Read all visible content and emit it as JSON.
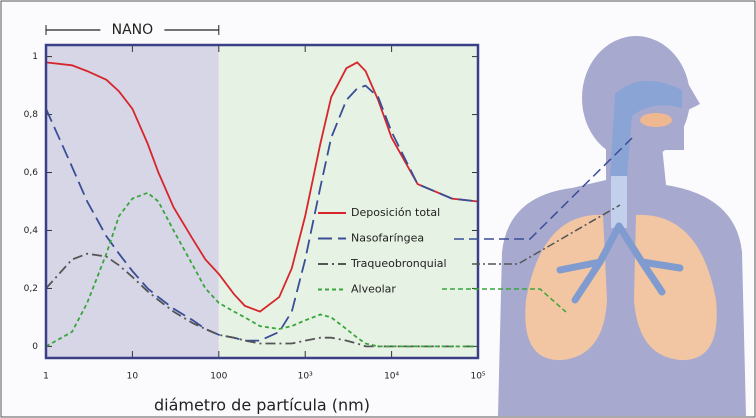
{
  "chart_data": {
    "type": "line",
    "xscale": "log",
    "xlabel": "diámetro de partícula (nm)",
    "xlim": [
      1,
      100000
    ],
    "xticks": [
      1,
      10,
      100,
      {
        "value": 1000,
        "label": "10³"
      },
      {
        "value": 10000,
        "label": "10⁴"
      },
      {
        "value": 100000,
        "label": "10⁵"
      }
    ],
    "ylim": [
      -0.04,
      1.04
    ],
    "yticks": [
      0,
      {
        "value": 0.2,
        "label": "0,2"
      },
      {
        "value": 0.4,
        "label": "0,4"
      },
      {
        "value": 0.6,
        "label": "0,6"
      },
      {
        "value": 0.8,
        "label": "0,8"
      },
      1
    ],
    "grid": false,
    "legend": "inside right",
    "regions": [
      {
        "label": "NANO",
        "xlim": [
          1,
          100
        ],
        "color": "#d6d6e7"
      },
      {
        "xlim": [
          100,
          100000
        ],
        "color": "#e6f2e3"
      }
    ],
    "x": [
      1,
      2,
      3,
      5,
      7,
      10,
      15,
      20,
      30,
      50,
      70,
      100,
      150,
      200,
      300,
      500,
      700,
      1000,
      1500,
      2000,
      3000,
      4000,
      5000,
      7000,
      10000,
      20000,
      50000,
      100000
    ],
    "series": [
      {
        "name": "Deposición total",
        "color": "#d7262b",
        "dash": "solid",
        "values": [
          0.98,
          0.97,
          0.95,
          0.92,
          0.88,
          0.82,
          0.7,
          0.6,
          0.48,
          0.37,
          0.3,
          0.25,
          0.18,
          0.14,
          0.12,
          0.17,
          0.27,
          0.45,
          0.7,
          0.86,
          0.96,
          0.98,
          0.95,
          0.85,
          0.72,
          0.56,
          0.51,
          0.5
        ]
      },
      {
        "name": "Nasofaríngea",
        "color": "#3a4e97",
        "dash": "dashed",
        "values": [
          0.82,
          0.62,
          0.5,
          0.38,
          0.32,
          0.26,
          0.2,
          0.17,
          0.13,
          0.09,
          0.06,
          0.04,
          0.03,
          0.02,
          0.02,
          0.05,
          0.12,
          0.3,
          0.55,
          0.72,
          0.85,
          0.89,
          0.9,
          0.86,
          0.74,
          0.56,
          0.51,
          0.5
        ]
      },
      {
        "name": "Traqueobronquial",
        "color": "#555555",
        "dash": "dashdot",
        "values": [
          0.2,
          0.3,
          0.32,
          0.31,
          0.28,
          0.24,
          0.19,
          0.16,
          0.12,
          0.08,
          0.06,
          0.04,
          0.03,
          0.02,
          0.01,
          0.01,
          0.01,
          0.02,
          0.03,
          0.03,
          0.02,
          0.01,
          0,
          0,
          0,
          0,
          0,
          0
        ]
      },
      {
        "name": "Alveolar",
        "color": "#3aa53c",
        "dash": "dotted",
        "values": [
          0,
          0.05,
          0.15,
          0.32,
          0.45,
          0.51,
          0.53,
          0.5,
          0.4,
          0.28,
          0.2,
          0.15,
          0.12,
          0.1,
          0.07,
          0.06,
          0.07,
          0.09,
          0.11,
          0.1,
          0.06,
          0.03,
          0.01,
          0,
          0,
          0,
          0,
          0
        ]
      }
    ]
  }
}
